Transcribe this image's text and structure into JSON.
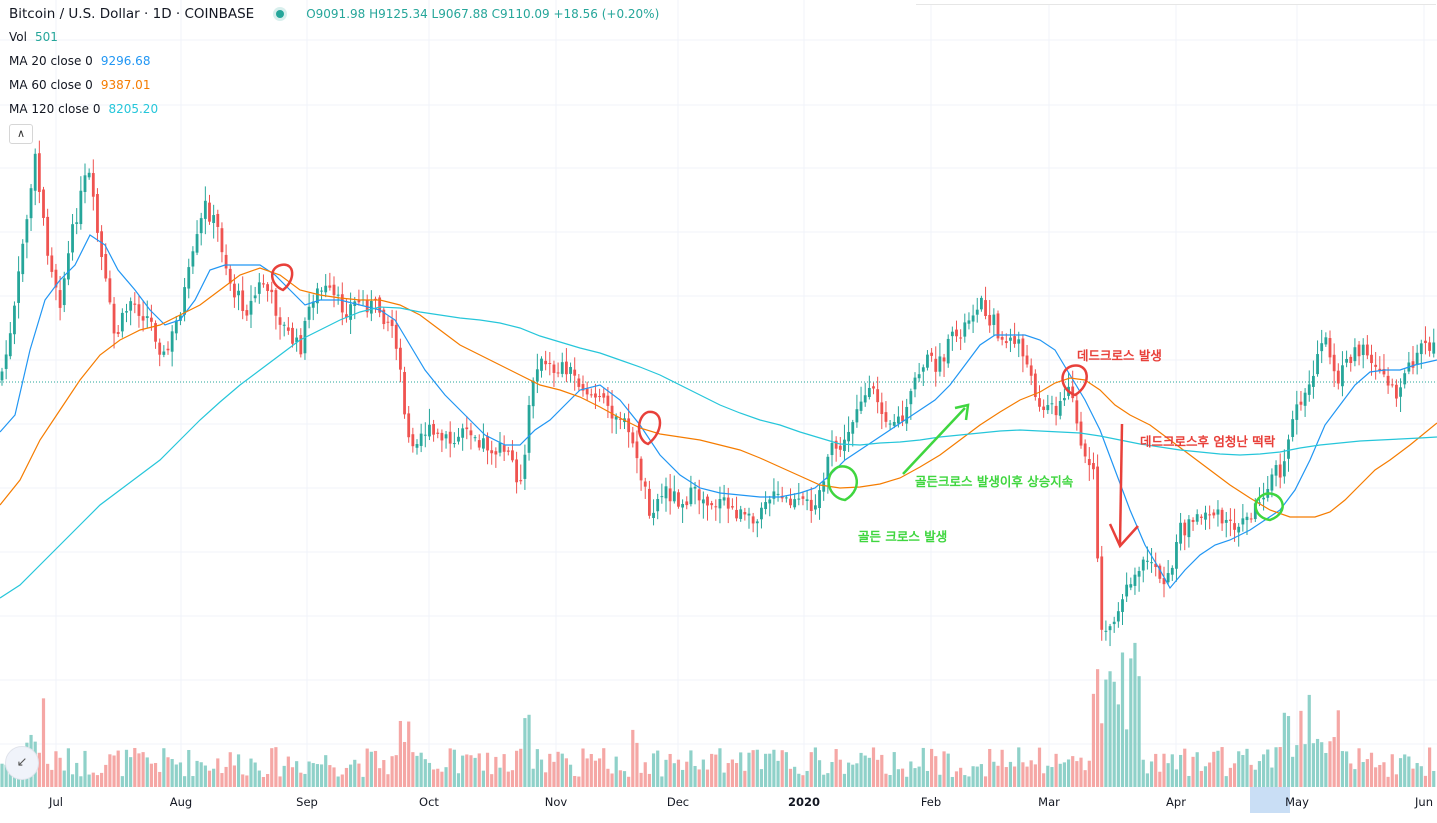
{
  "header": {
    "symbol": "Bitcoin / U.S. Dollar · 1D · COINBASE",
    "ohlc": "O9091.98  H9125.34  L9067.88  C9110.09  +18.56 (+0.20%)"
  },
  "legend": {
    "vol_label": "Vol",
    "vol_value": "501",
    "ma20_label": "MA 20 close 0",
    "ma20_value": "9296.68",
    "ma60_label": "MA 60 close 0",
    "ma60_value": "9387.01",
    "ma120_label": "MA 120 close 0",
    "ma120_value": "8205.20"
  },
  "colors": {
    "up": "#26a69a",
    "down": "#ef5350",
    "ma20": "#2196f3",
    "ma60": "#f57c00",
    "ma120": "#26c6da",
    "volume_up": "#8fd1c9",
    "volume_down": "#f5a7a5",
    "annotation_red": "#e8403a",
    "annotation_green": "#3fd63f"
  },
  "x_axis_labels": [
    "Jul",
    "Aug",
    "Sep",
    "Oct",
    "Nov",
    "Dec",
    "2020",
    "Feb",
    "Mar",
    "Apr",
    "May",
    "Jun"
  ],
  "annotations": {
    "golden_cross": "골든 크로스 발생",
    "golden_cross_rise": "골든크로스 발생이후 상승지속",
    "dead_cross": "데드크로스 발생",
    "dead_cross_drop": "데드크로스후 엄청난 떡락"
  },
  "chart_data": {
    "type": "candlestick",
    "title": "Bitcoin / U.S. Dollar · 1D · COINBASE",
    "x_range": [
      "2019-06-24",
      "2020-06-04"
    ],
    "y_range_approx": [
      3700,
      13900
    ],
    "last_close": 9110.09,
    "key_points": [
      {
        "date": "2019-06-26",
        "price": 13200,
        "note": "peak"
      },
      {
        "date": "2019-09-25",
        "price": 8300,
        "note": "drop"
      },
      {
        "date": "2019-10-26",
        "price": 10300,
        "note": "spike"
      },
      {
        "date": "2019-12-17",
        "price": 6600,
        "note": "low"
      },
      {
        "date": "2020-02-13",
        "price": 10400,
        "note": "high"
      },
      {
        "date": "2020-03-12",
        "price": 4800,
        "note": "crash"
      },
      {
        "date": "2020-06-01",
        "price": 10200,
        "note": "recovery"
      }
    ],
    "series": [
      {
        "name": "MA 20 close 0",
        "last": 9296.68
      },
      {
        "name": "MA 60 close 0",
        "last": 9387.01
      },
      {
        "name": "MA 120 close 0",
        "last": 8205.2
      },
      {
        "name": "Vol",
        "last": 501
      }
    ]
  }
}
